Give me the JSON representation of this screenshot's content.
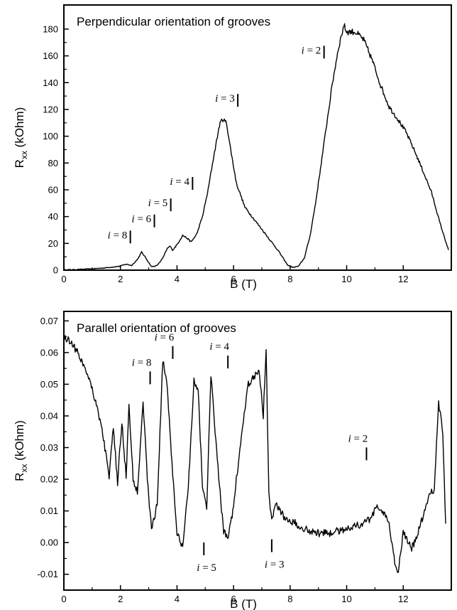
{
  "chart_data": [
    {
      "type": "line",
      "title": "Perpendicular orientation of grooves",
      "xlabel": "B (T)",
      "ylabel": "R",
      "ylabel_sub": "xx",
      "ylabel_unit": " (kOhm)",
      "xlim": [
        0,
        13.7
      ],
      "ylim": [
        0,
        198
      ],
      "xticks": [
        "0",
        "2",
        "4",
        "6",
        "8",
        "10",
        "12"
      ],
      "xtick_values": [
        0,
        2,
        4,
        6,
        8,
        10,
        12
      ],
      "yticks": [
        "0",
        "20",
        "40",
        "60",
        "80",
        "100",
        "120",
        "140",
        "160",
        "180"
      ],
      "ytick_values": [
        0,
        20,
        40,
        60,
        80,
        100,
        120,
        140,
        160,
        180
      ],
      "grid": false,
      "series": [
        {
          "x": [
            0,
            0.5,
            1,
            1.4,
            1.8,
            2.0,
            2.2,
            2.4,
            2.6,
            2.75,
            2.9,
            3.1,
            3.3,
            3.5,
            3.65,
            3.75,
            3.85,
            4.0,
            4.2,
            4.35,
            4.5,
            4.7,
            4.9,
            5.1,
            5.3,
            5.5,
            5.6,
            5.75,
            5.9,
            6.1,
            6.4,
            6.8,
            7.2,
            7.6,
            7.9,
            8.1,
            8.3,
            8.5,
            8.7,
            8.9,
            9.1,
            9.3,
            9.5,
            9.7,
            9.9,
            10.0,
            10.3,
            10.6,
            10.9,
            11.2,
            11.5,
            11.8,
            12.1,
            12.4,
            12.7,
            13.0,
            13.3,
            13.6
          ],
          "y": [
            0.2,
            0.5,
            1.0,
            1.6,
            2.5,
            3.0,
            4.5,
            3.5,
            8,
            13.5,
            9,
            2.5,
            3.5,
            9,
            16,
            18,
            15,
            19,
            26,
            24,
            21,
            27,
            40,
            60,
            85,
            108,
            113,
            110,
            90,
            65,
            47,
            36,
            25,
            14,
            4,
            2,
            3,
            9,
            25,
            50,
            80,
            110,
            140,
            165,
            183,
            178,
            178,
            172,
            157,
            138,
            122,
            113,
            103,
            89,
            74,
            58,
            35,
            15
          ]
        }
      ],
      "annotations": [
        {
          "label": "i = 8",
          "x": 2.35,
          "y": 20
        },
        {
          "label": "i = 6",
          "x": 3.2,
          "y": 32
        },
        {
          "label": "i = 5",
          "x": 3.78,
          "y": 44
        },
        {
          "label": "i = 4",
          "x": 4.55,
          "y": 60
        },
        {
          "label": "i = 3",
          "x": 6.15,
          "y": 122
        },
        {
          "label": "i = 2",
          "x": 9.2,
          "y": 158
        }
      ]
    },
    {
      "type": "line",
      "title": "Parallel orientation of grooves",
      "xlabel": "B (T)",
      "ylabel": "R",
      "ylabel_sub": "xx",
      "ylabel_unit": " (kOhm)",
      "xlim": [
        0,
        13.7
      ],
      "ylim": [
        -0.015,
        0.073
      ],
      "xticks": [
        "0",
        "2",
        "4",
        "6",
        "8",
        "10",
        "12"
      ],
      "xtick_values": [
        0,
        2,
        4,
        6,
        8,
        10,
        12
      ],
      "yticks": [
        "-0.01",
        "0.00",
        "0.01",
        "0.02",
        "0.03",
        "0.04",
        "0.05",
        "0.06",
        "0.07"
      ],
      "ytick_values": [
        -0.01,
        0,
        0.01,
        0.02,
        0.03,
        0.04,
        0.05,
        0.06,
        0.07
      ],
      "grid": false,
      "series": [
        {
          "x": [
            0,
            0.3,
            0.6,
            0.9,
            1.2,
            1.4,
            1.6,
            1.75,
            1.9,
            2.05,
            2.2,
            2.3,
            2.45,
            2.6,
            2.8,
            2.95,
            3.1,
            3.3,
            3.5,
            3.65,
            3.8,
            4.0,
            4.2,
            4.4,
            4.6,
            4.75,
            4.9,
            5.05,
            5.2,
            5.35,
            5.5,
            5.65,
            5.8,
            5.95,
            6.1,
            6.3,
            6.5,
            6.7,
            6.9,
            7.05,
            7.15,
            7.25,
            7.35,
            7.5,
            7.8,
            8.2,
            8.6,
            9.0,
            9.4,
            9.8,
            10.2,
            10.6,
            10.9,
            11.1,
            11.3,
            11.5,
            11.7,
            11.8,
            12.0,
            12.3,
            12.6,
            12.9,
            13.1,
            13.25,
            13.4,
            13.5
          ],
          "y": [
            0.065,
            0.063,
            0.058,
            0.052,
            0.042,
            0.033,
            0.021,
            0.036,
            0.019,
            0.038,
            0.021,
            0.043,
            0.02,
            0.016,
            0.045,
            0.02,
            0.004,
            0.012,
            0.058,
            0.05,
            0.028,
            0.003,
            -0.002,
            0.018,
            0.051,
            0.048,
            0.018,
            0.011,
            0.053,
            0.035,
            0.018,
            0.003,
            0.002,
            0.008,
            0.02,
            0.035,
            0.05,
            0.052,
            0.055,
            0.04,
            0.062,
            0.015,
            0.008,
            0.012,
            0.008,
            0.006,
            0.004,
            0.003,
            0.003,
            0.004,
            0.005,
            0.006,
            0.008,
            0.012,
            0.009,
            0.006,
            -0.006,
            -0.01,
            0.003,
            -0.002,
            0.005,
            0.015,
            0.017,
            0.044,
            0.035,
            0.006
          ]
        }
      ],
      "annotations": [
        {
          "label": "i = 8",
          "x": 3.05,
          "y": 0.05,
          "side": "above"
        },
        {
          "label": "i = 6",
          "x": 3.85,
          "y": 0.058,
          "side": "above"
        },
        {
          "label": "i = 4",
          "x": 5.8,
          "y": 0.055,
          "side": "above"
        },
        {
          "label": "i = 2",
          "x": 10.7,
          "y": 0.026,
          "side": "above"
        },
        {
          "label": "i = 5",
          "x": 4.95,
          "y": -0.004,
          "side": "below"
        },
        {
          "label": "i = 3",
          "x": 7.35,
          "y": -0.003,
          "side": "below"
        }
      ]
    }
  ]
}
